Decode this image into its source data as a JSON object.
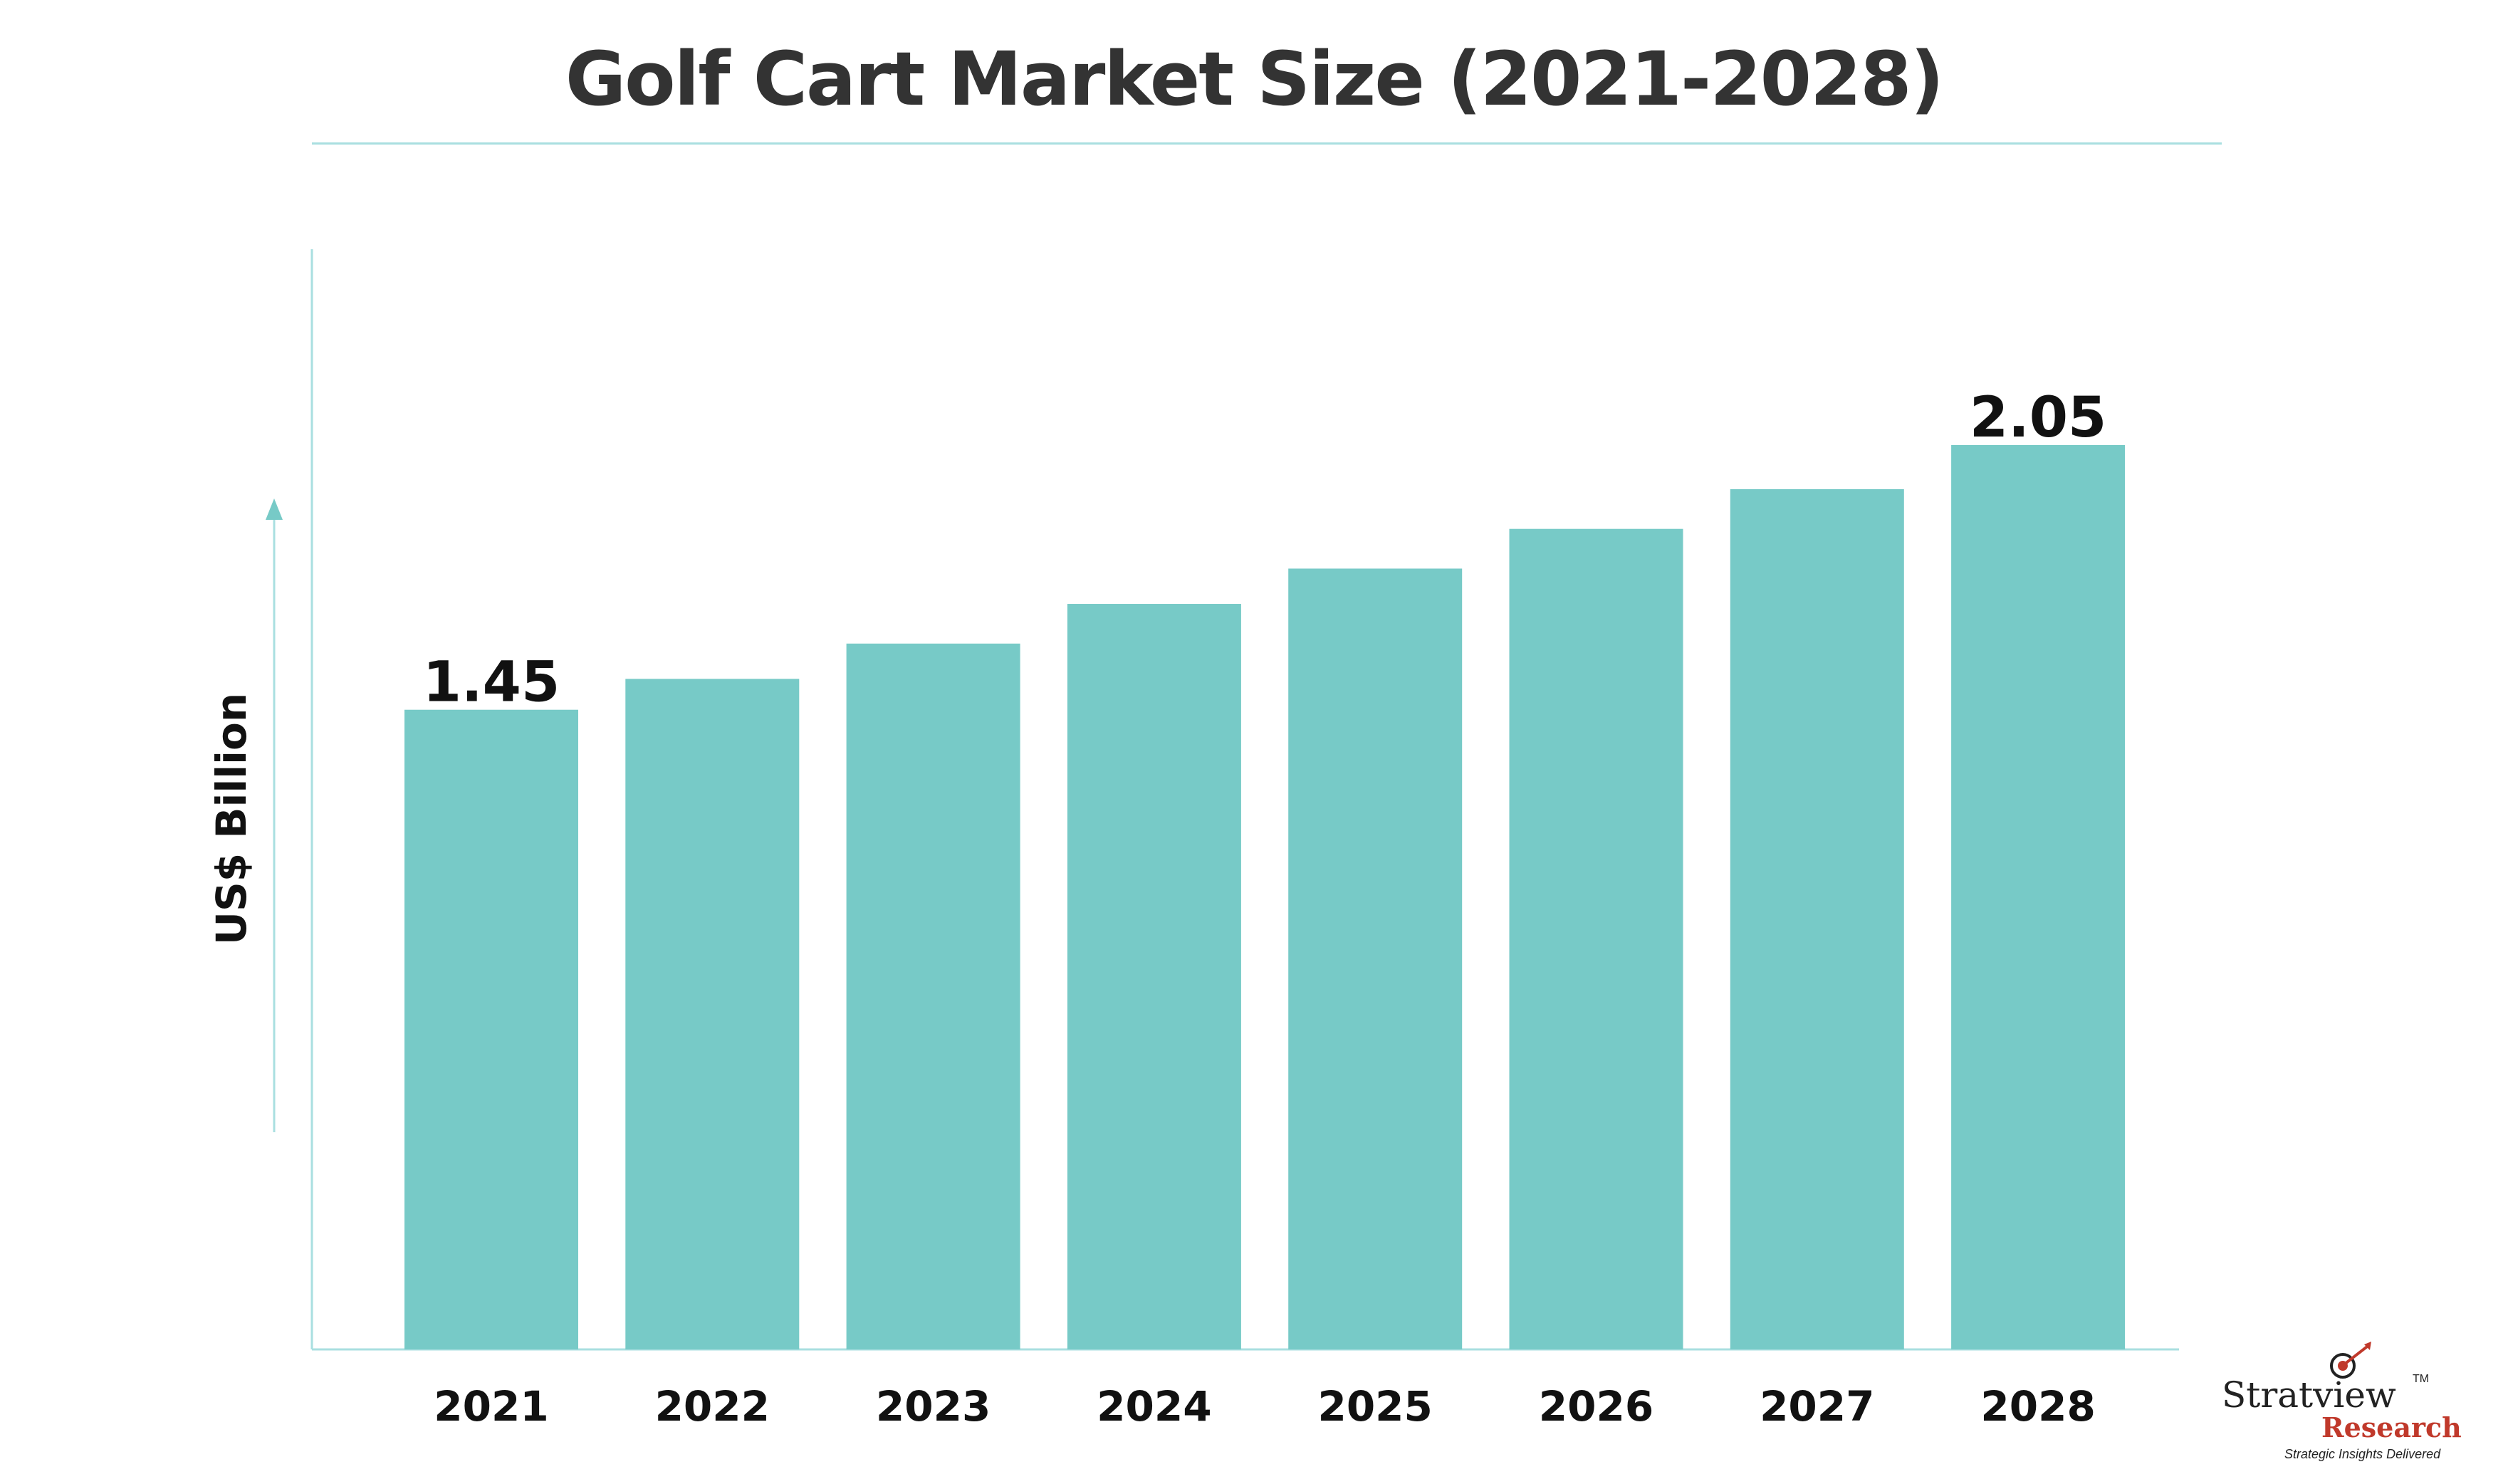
{
  "title": "Golf Cart Market Size (2021-2028)",
  "chart_data": {
    "type": "bar",
    "categories": [
      "2021",
      "2022",
      "2023",
      "2024",
      "2025",
      "2026",
      "2027",
      "2028"
    ],
    "values": [
      1.45,
      1.52,
      1.6,
      1.69,
      1.77,
      1.86,
      1.95,
      2.05
    ],
    "data_labels": [
      "1.45",
      "",
      "",
      "",
      "",
      "",
      "",
      "2.05"
    ],
    "ylabel": "US$ Billion",
    "xlabel": "",
    "ylim": [
      0,
      2.05
    ],
    "bar_color": "#77cac7",
    "axis_color": "#a9dfe0",
    "grid": false,
    "legend": "none"
  },
  "logo": {
    "name": "Stratview",
    "tm": "TM",
    "research": "Research",
    "tagline": "Strategic Insights Delivered"
  },
  "colors": {
    "accent": "#77cac7",
    "brand_red": "#c0392b",
    "text": "#333333"
  }
}
